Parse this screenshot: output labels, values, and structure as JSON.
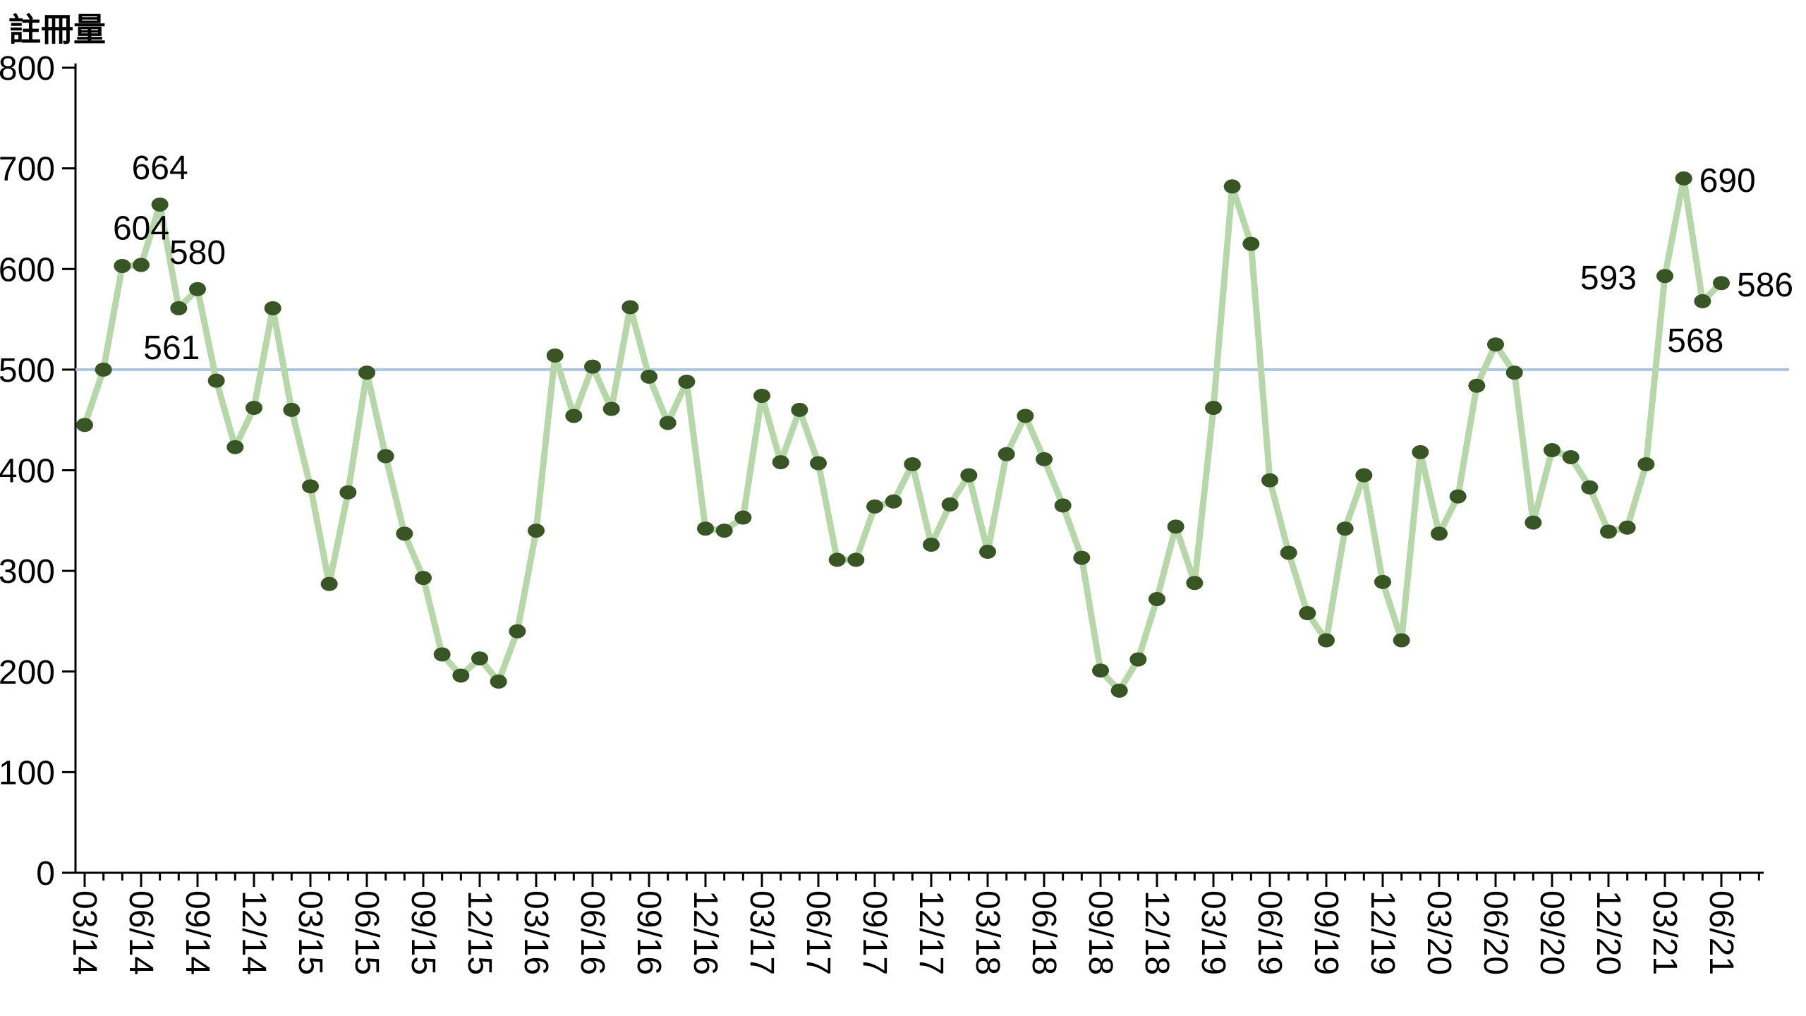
{
  "chart_data": {
    "type": "line",
    "title": "註冊量",
    "x_interval": "monthly",
    "x": [
      "03/14",
      "04/14",
      "05/14",
      "06/14",
      "07/14",
      "08/14",
      "09/14",
      "10/14",
      "11/14",
      "12/14",
      "01/15",
      "02/15",
      "03/15",
      "04/15",
      "05/15",
      "06/15",
      "07/15",
      "08/15",
      "09/15",
      "10/15",
      "11/15",
      "12/15",
      "01/16",
      "02/16",
      "03/16",
      "04/16",
      "05/16",
      "06/16",
      "07/16",
      "08/16",
      "09/16",
      "10/16",
      "11/16",
      "12/16",
      "01/17",
      "02/17",
      "03/17",
      "04/17",
      "05/17",
      "06/17",
      "07/17",
      "08/17",
      "09/17",
      "10/17",
      "11/17",
      "12/17",
      "01/18",
      "02/18",
      "03/18",
      "04/18",
      "05/18",
      "06/18",
      "07/18",
      "08/18",
      "09/18",
      "10/18",
      "11/18",
      "12/18",
      "01/19",
      "02/19",
      "03/19",
      "04/19",
      "05/19",
      "06/19",
      "07/19",
      "08/19",
      "09/19",
      "10/19",
      "11/19",
      "12/19",
      "01/20",
      "02/20",
      "03/20",
      "04/20",
      "05/20",
      "06/20",
      "07/20",
      "08/20",
      "09/20",
      "10/20",
      "11/20",
      "12/20",
      "01/21",
      "02/21",
      "03/21",
      "04/21",
      "05/21",
      "06/21"
    ],
    "values": [
      445,
      500,
      603,
      604,
      664,
      561,
      580,
      489,
      423,
      462,
      561,
      460,
      384,
      287,
      378,
      497,
      414,
      337,
      293,
      217,
      196,
      213,
      190,
      240,
      340,
      514,
      454,
      503,
      461,
      562,
      493,
      447,
      488,
      342,
      340,
      353,
      474,
      408,
      460,
      407,
      311,
      311,
      364,
      369,
      406,
      326,
      366,
      395,
      319,
      416,
      454,
      411,
      365,
      313,
      201,
      181,
      212,
      272,
      344,
      288,
      462,
      682,
      625,
      390,
      318,
      258,
      231,
      342,
      395,
      289,
      231,
      418,
      337,
      374,
      484,
      525,
      497,
      348,
      420,
      413,
      383,
      339,
      343,
      406,
      593,
      690,
      568,
      586
    ],
    "x_tick_labels": [
      "03/14",
      "06/14",
      "09/14",
      "12/14",
      "03/15",
      "06/15",
      "09/15",
      "12/15",
      "03/16",
      "06/16",
      "09/16",
      "12/16",
      "03/17",
      "06/17",
      "09/17",
      "12/17",
      "03/18",
      "06/18",
      "09/18",
      "12/18",
      "03/19",
      "06/19",
      "09/19",
      "12/19",
      "03/20",
      "06/20",
      "09/20",
      "12/20",
      "03/21",
      "06/21"
    ],
    "y_ticks": [
      0,
      100,
      200,
      300,
      400,
      500,
      600,
      700,
      800
    ],
    "ylim": [
      0,
      800
    ],
    "reference_line": 500,
    "grid": false,
    "legend": null,
    "annotations": [
      {
        "index": 3,
        "text": "604",
        "placement": "above"
      },
      {
        "index": 4,
        "text": "664",
        "placement": "above"
      },
      {
        "index": 5,
        "text": "561",
        "placement": "below"
      },
      {
        "index": 6,
        "text": "580",
        "placement": "above"
      },
      {
        "index": 84,
        "text": "593",
        "placement": "left"
      },
      {
        "index": 85,
        "text": "690",
        "placement": "right"
      },
      {
        "index": 86,
        "text": "568",
        "placement": "below"
      },
      {
        "index": 87,
        "text": "586",
        "placement": "right"
      }
    ],
    "colors": {
      "line": "#b6d7a8",
      "marker": "#375623",
      "reference": "#a9c4e5",
      "axis": "#000000",
      "text": "#000000"
    }
  }
}
